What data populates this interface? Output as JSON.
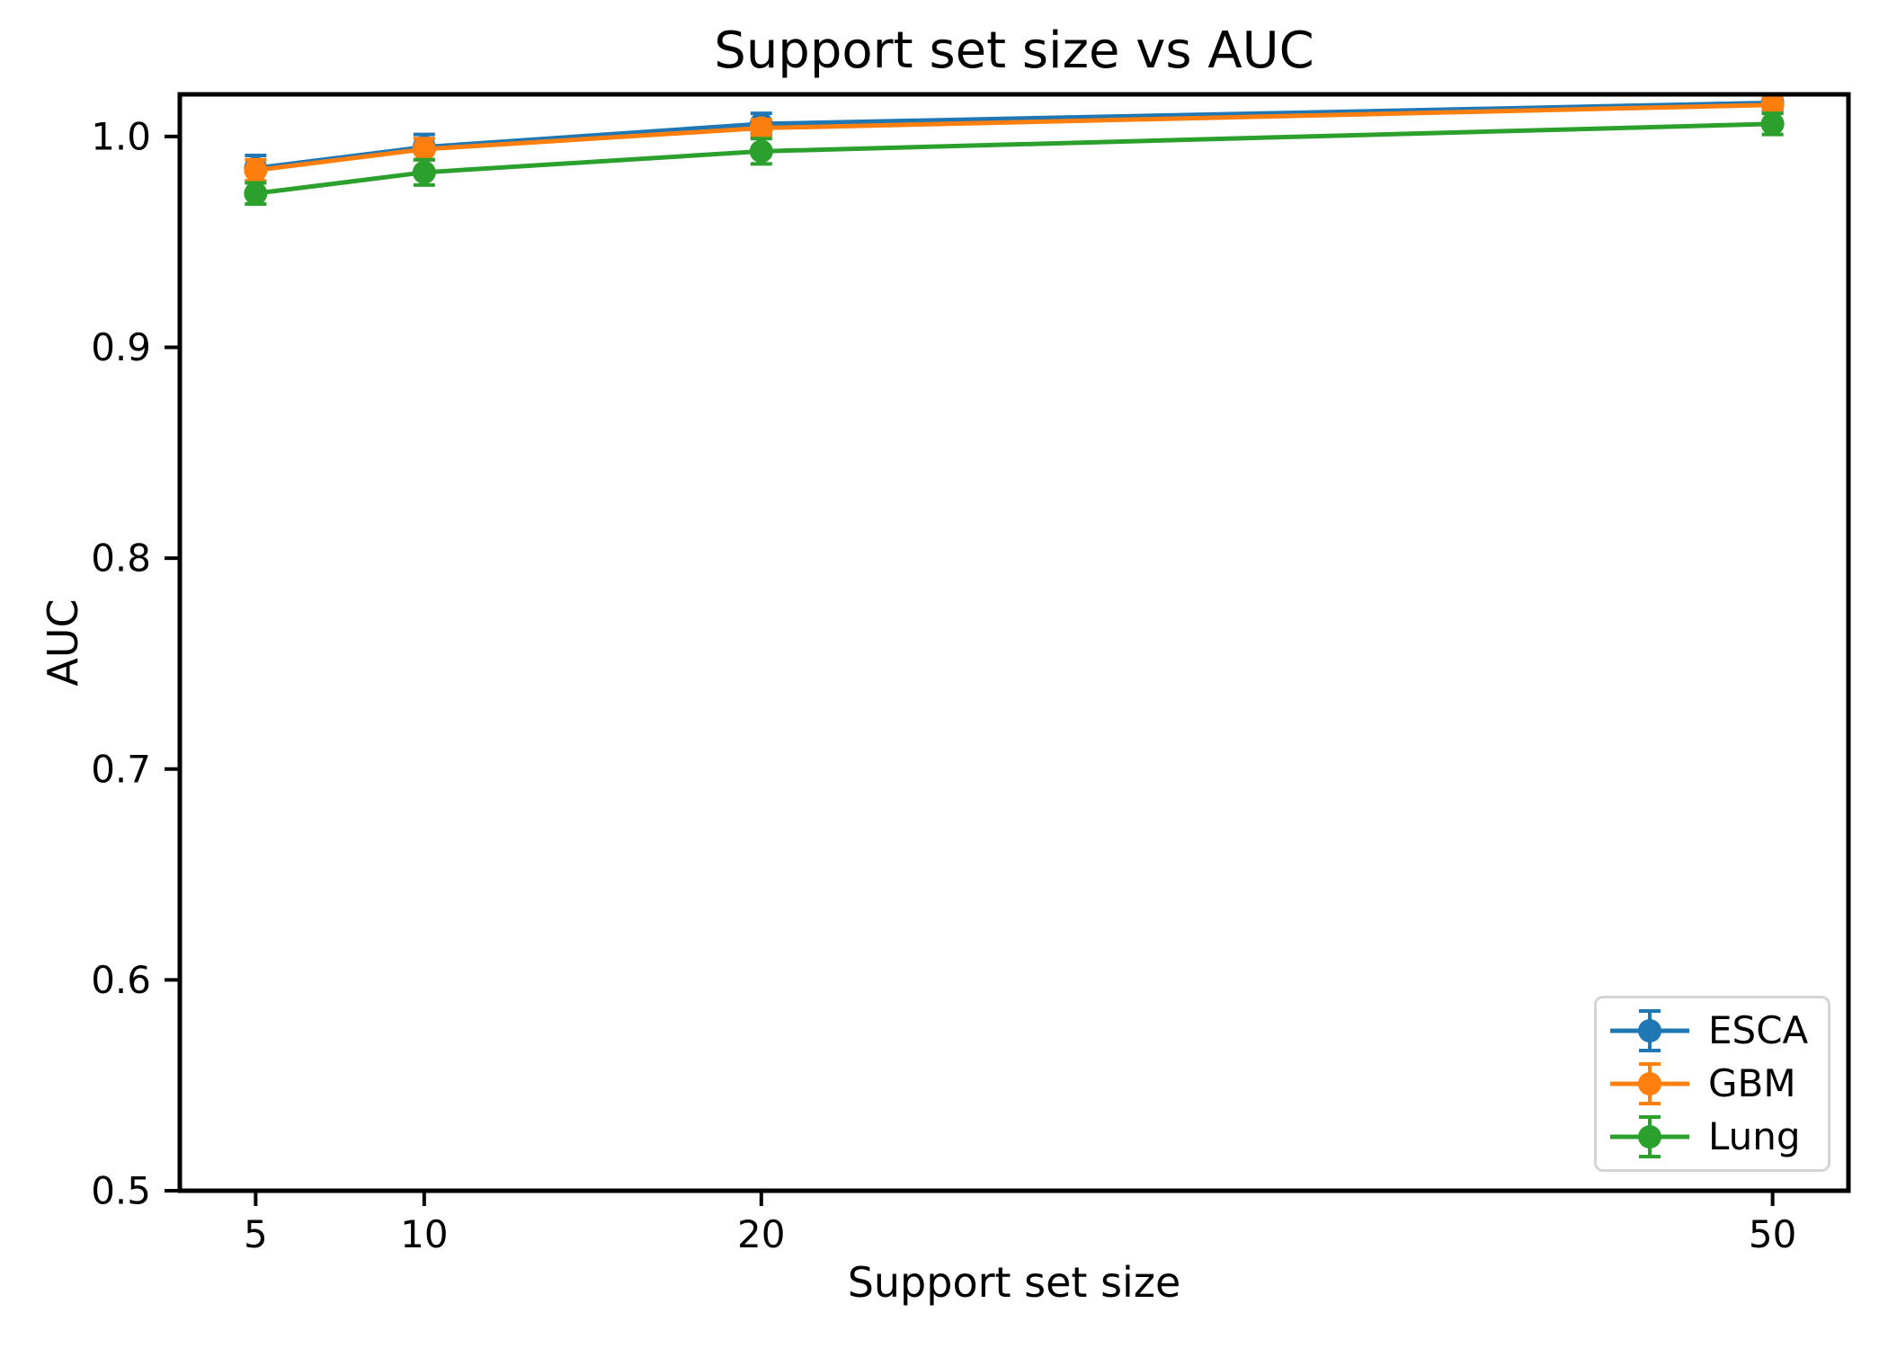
{
  "chart_data": {
    "type": "line",
    "title": "Support set size vs AUC",
    "xlabel": "Support set size",
    "ylabel": "AUC",
    "x": [
      5,
      10,
      20,
      50
    ],
    "xtick_labels": [
      "5",
      "10",
      "20",
      "50"
    ],
    "yticks": [
      0.5,
      0.6,
      0.7,
      0.8,
      0.9,
      1.0
    ],
    "ytick_labels": [
      "0.5",
      "0.6",
      "0.7",
      "0.8",
      "0.9",
      "1.0"
    ],
    "xlim": [
      2.75,
      52.25
    ],
    "ylim": [
      0.5,
      1.02
    ],
    "grid": false,
    "legend_position": "lower right",
    "marker": "circle",
    "axis_color": "#000000",
    "series": [
      {
        "name": "ESCA",
        "color": "#1f77b4",
        "values": [
          0.985,
          0.995,
          1.006,
          1.016
        ],
        "yerr": [
          0.006,
          0.006,
          0.005,
          0.004
        ]
      },
      {
        "name": "GBM",
        "color": "#ff7f0e",
        "values": [
          0.984,
          0.994,
          1.004,
          1.015
        ],
        "yerr": [
          0.005,
          0.005,
          0.004,
          0.004
        ]
      },
      {
        "name": "Lung",
        "color": "#2ca02c",
        "values": [
          0.973,
          0.983,
          0.993,
          1.006
        ],
        "yerr": [
          0.005,
          0.006,
          0.006,
          0.005
        ]
      }
    ]
  }
}
